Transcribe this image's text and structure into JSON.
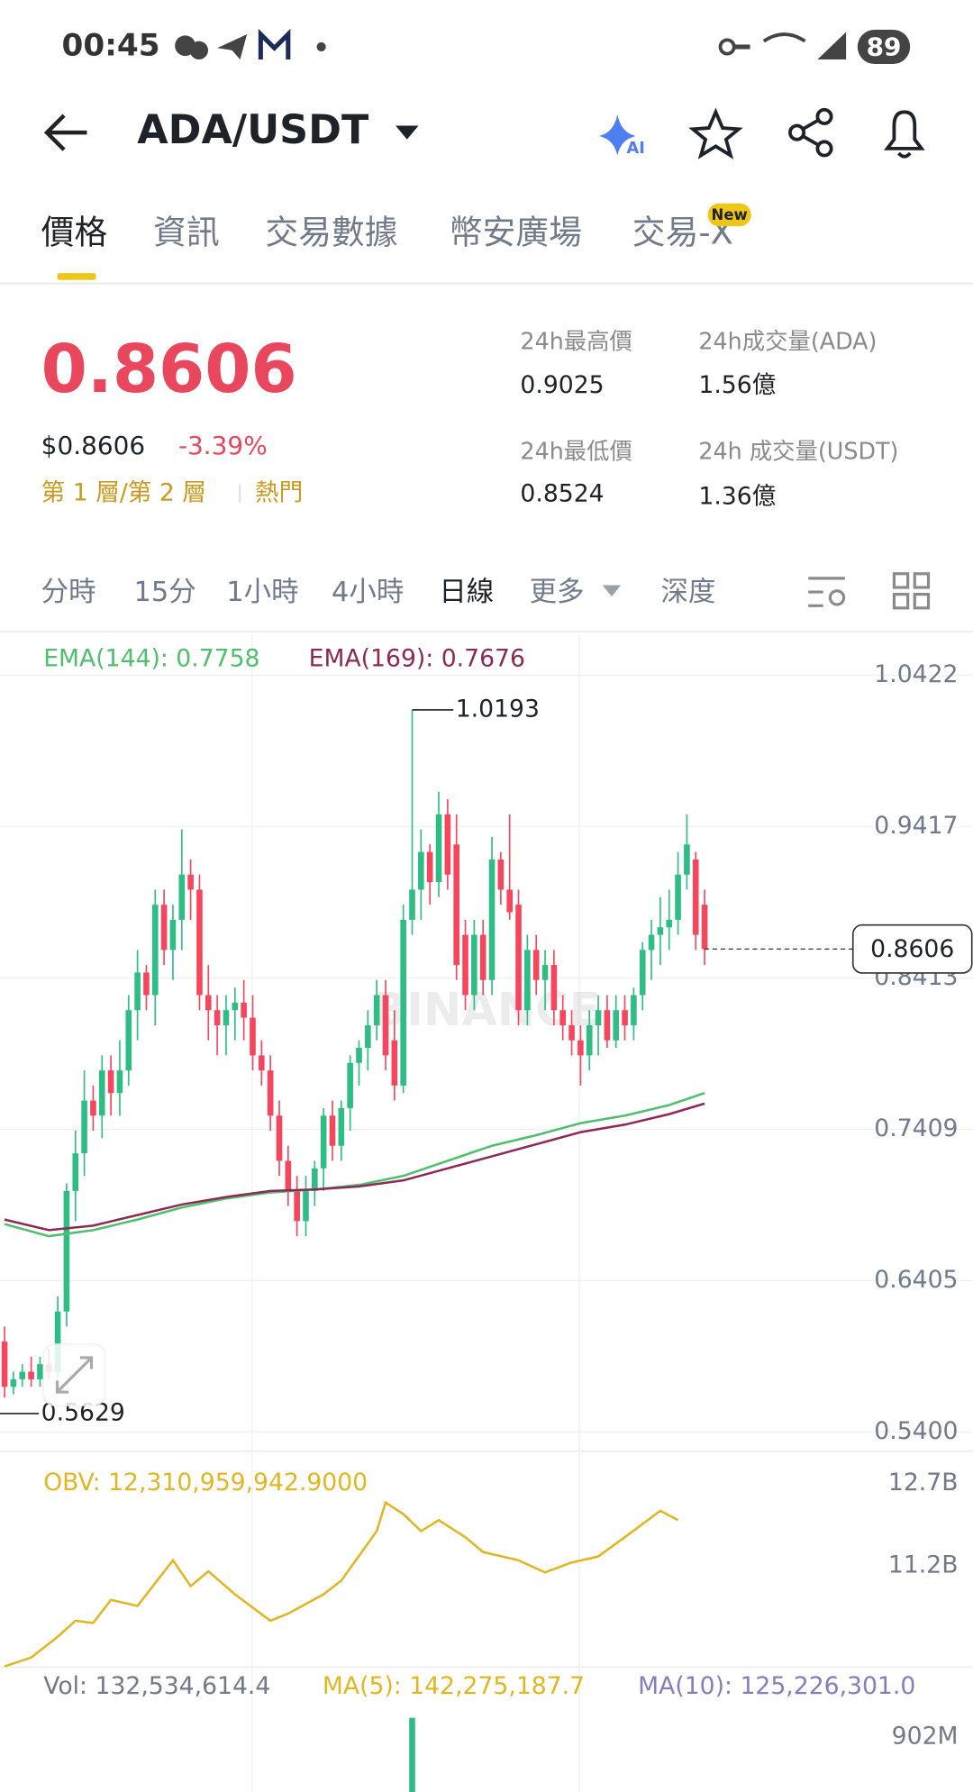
{
  "status_bar": {
    "time": "00:45",
    "battery": "89"
  },
  "header": {
    "title": "ADA/USDT"
  },
  "tabs": [
    {
      "label": "價格"
    },
    {
      "label": "資訊"
    },
    {
      "label": "交易數據"
    },
    {
      "label": "幣安廣場"
    },
    {
      "label": "交易-X",
      "badge": "New"
    }
  ],
  "price_info": {
    "last": "0.8606",
    "usd": "$0.8606",
    "change": "-3.39%",
    "tags": [
      "第 1 層/第 2 層",
      "熱門"
    ]
  },
  "stats": [
    {
      "label": "24h最高價",
      "value": "0.9025"
    },
    {
      "label": "24h成交量(ADA)",
      "value": "1.56億"
    },
    {
      "label": "24h最低價",
      "value": "0.8524"
    },
    {
      "label": "24h 成交量(USDT)",
      "value": "1.36億"
    }
  ],
  "intervals": [
    "分時",
    "15分",
    "1小時",
    "4小時",
    "日線",
    "更多",
    "深度"
  ],
  "chart_data": {
    "type": "candlestick",
    "ylim": [
      0.54,
      1.0422
    ],
    "yticks": [
      1.0422,
      0.9417,
      0.8413,
      0.7409,
      0.6405,
      {
        "value": 0.54,
        "label": "0.5400"
      }
    ],
    "up_color": "#2ebd85",
    "down_color": "#f6465d",
    "candles": [
      [
        0.6,
        0.61,
        0.5629,
        0.57
      ],
      [
        0.57,
        0.58,
        0.565,
        0.575
      ],
      [
        0.575,
        0.585,
        0.57,
        0.58
      ],
      [
        0.58,
        0.59,
        0.57,
        0.575
      ],
      [
        0.575,
        0.59,
        0.57,
        0.585
      ],
      [
        0.585,
        0.595,
        0.575,
        0.58
      ],
      [
        0.58,
        0.63,
        0.575,
        0.62
      ],
      [
        0.62,
        0.705,
        0.61,
        0.7
      ],
      [
        0.7,
        0.74,
        0.68,
        0.725
      ],
      [
        0.725,
        0.78,
        0.71,
        0.76
      ],
      [
        0.76,
        0.77,
        0.74,
        0.75
      ],
      [
        0.75,
        0.79,
        0.735,
        0.78
      ],
      [
        0.78,
        0.79,
        0.75,
        0.765
      ],
      [
        0.765,
        0.8,
        0.75,
        0.78
      ],
      [
        0.78,
        0.83,
        0.77,
        0.82
      ],
      [
        0.82,
        0.86,
        0.8,
        0.845
      ],
      [
        0.845,
        0.85,
        0.82,
        0.83
      ],
      [
        0.83,
        0.9,
        0.81,
        0.89
      ],
      [
        0.89,
        0.9,
        0.85,
        0.86
      ],
      [
        0.86,
        0.89,
        0.84,
        0.88
      ],
      [
        0.88,
        0.94,
        0.86,
        0.91
      ],
      [
        0.91,
        0.92,
        0.88,
        0.9
      ],
      [
        0.9,
        0.91,
        0.82,
        0.83
      ],
      [
        0.83,
        0.85,
        0.8,
        0.82
      ],
      [
        0.82,
        0.83,
        0.79,
        0.81
      ],
      [
        0.81,
        0.83,
        0.79,
        0.82
      ],
      [
        0.82,
        0.835,
        0.8,
        0.825
      ],
      [
        0.825,
        0.84,
        0.8,
        0.815
      ],
      [
        0.815,
        0.83,
        0.78,
        0.79
      ],
      [
        0.79,
        0.8,
        0.77,
        0.78
      ],
      [
        0.78,
        0.79,
        0.74,
        0.75
      ],
      [
        0.75,
        0.76,
        0.71,
        0.72
      ],
      [
        0.72,
        0.73,
        0.69,
        0.7
      ],
      [
        0.7,
        0.71,
        0.67,
        0.68
      ],
      [
        0.68,
        0.71,
        0.67,
        0.7
      ],
      [
        0.7,
        0.72,
        0.69,
        0.715
      ],
      [
        0.715,
        0.755,
        0.7,
        0.75
      ],
      [
        0.75,
        0.76,
        0.72,
        0.73
      ],
      [
        0.73,
        0.76,
        0.72,
        0.755
      ],
      [
        0.755,
        0.79,
        0.74,
        0.785
      ],
      [
        0.785,
        0.8,
        0.77,
        0.795
      ],
      [
        0.795,
        0.82,
        0.78,
        0.81
      ],
      [
        0.81,
        0.84,
        0.8,
        0.83
      ],
      [
        0.83,
        0.84,
        0.78,
        0.79
      ],
      [
        0.8,
        0.82,
        0.76,
        0.77
      ],
      [
        0.77,
        0.89,
        0.765,
        0.88
      ],
      [
        0.88,
        1.0193,
        0.87,
        0.9
      ],
      [
        0.9,
        0.94,
        0.88,
        0.925
      ],
      [
        0.925,
        0.93,
        0.89,
        0.905
      ],
      [
        0.905,
        0.965,
        0.895,
        0.95
      ],
      [
        0.95,
        0.96,
        0.9,
        0.91
      ],
      [
        0.93,
        0.95,
        0.84,
        0.85
      ],
      [
        0.87,
        0.88,
        0.82,
        0.83
      ],
      [
        0.83,
        0.88,
        0.82,
        0.87
      ],
      [
        0.87,
        0.88,
        0.83,
        0.84
      ],
      [
        0.84,
        0.935,
        0.83,
        0.92
      ],
      [
        0.92,
        0.925,
        0.89,
        0.9
      ],
      [
        0.9,
        0.95,
        0.88,
        0.885
      ],
      [
        0.89,
        0.9,
        0.81,
        0.82
      ],
      [
        0.82,
        0.87,
        0.81,
        0.86
      ],
      [
        0.86,
        0.87,
        0.83,
        0.84
      ],
      [
        0.84,
        0.86,
        0.82,
        0.85
      ],
      [
        0.85,
        0.86,
        0.81,
        0.82
      ],
      [
        0.82,
        0.83,
        0.8,
        0.81
      ],
      [
        0.81,
        0.82,
        0.79,
        0.8
      ],
      [
        0.8,
        0.81,
        0.77,
        0.79
      ],
      [
        0.79,
        0.82,
        0.78,
        0.81
      ],
      [
        0.81,
        0.83,
        0.79,
        0.82
      ],
      [
        0.82,
        0.83,
        0.795,
        0.8
      ],
      [
        0.8,
        0.83,
        0.795,
        0.82
      ],
      [
        0.82,
        0.83,
        0.8,
        0.81
      ],
      [
        0.81,
        0.835,
        0.8,
        0.83
      ],
      [
        0.83,
        0.865,
        0.82,
        0.86
      ],
      [
        0.86,
        0.88,
        0.84,
        0.87
      ],
      [
        0.87,
        0.895,
        0.85,
        0.875
      ],
      [
        0.875,
        0.9,
        0.86,
        0.88
      ],
      [
        0.88,
        0.925,
        0.87,
        0.91
      ],
      [
        0.91,
        0.95,
        0.9,
        0.93
      ],
      [
        0.92,
        0.925,
        0.86,
        0.87
      ],
      [
        0.89,
        0.9,
        0.85,
        0.8606
      ]
    ],
    "ema_x": [
      0,
      5,
      10,
      15,
      20,
      25,
      30,
      35,
      40,
      45,
      50,
      55,
      60,
      65,
      70,
      75,
      79
    ],
    "series": [
      {
        "name": "EMA(144): 0.7758",
        "color": "#4fbf6e",
        "values": [
          0.678,
          0.67,
          0.674,
          0.681,
          0.689,
          0.695,
          0.699,
          0.701,
          0.704,
          0.71,
          0.72,
          0.73,
          0.737,
          0.745,
          0.75,
          0.757,
          0.765
        ]
      },
      {
        "name": "EMA(169): 0.7676",
        "color": "#8b2a55",
        "values": [
          0.681,
          0.674,
          0.677,
          0.684,
          0.691,
          0.696,
          0.7,
          0.701,
          0.703,
          0.707,
          0.715,
          0.723,
          0.731,
          0.739,
          0.744,
          0.751,
          0.758
        ]
      }
    ],
    "high_label": "1.0193",
    "low_label": "0.5629",
    "last_price_label": "0.8606",
    "last_price": 0.8606,
    "watermark": "BINANCE",
    "obv": {
      "name": "OBV: 12,310,959,942.9000",
      "color": "#e0b623",
      "ylim": [
        9.33,
        13.28
      ],
      "yticks": [
        {
          "value": 12.7,
          "label": "12.7B"
        },
        {
          "value": 11.2,
          "label": "11.2B"
        }
      ],
      "x": [
        0,
        3,
        6,
        8,
        10,
        12,
        15,
        19,
        21,
        23,
        26,
        30,
        32,
        36,
        38,
        42,
        43,
        45,
        47,
        49,
        52,
        54,
        58,
        61,
        64,
        67,
        70,
        74,
        76
      ],
      "values": [
        9.37,
        9.53,
        9.91,
        10.2,
        10.16,
        10.58,
        10.47,
        11.3,
        10.83,
        11.1,
        10.68,
        10.2,
        10.33,
        10.68,
        10.93,
        11.83,
        12.35,
        12.14,
        11.83,
        12.03,
        11.72,
        11.45,
        11.3,
        11.08,
        11.26,
        11.37,
        11.72,
        12.2,
        12.03
      ]
    },
    "volume": {
      "labels": [
        "Vol: 132,534,614.4",
        "MA(5): 142,275,187.7",
        "MA(10): 125,226,301.0"
      ],
      "ylim": [
        0,
        1466000000
      ],
      "yticks": [
        {
          "value": 902000000,
          "label": "902M"
        }
      ],
      "bar_x": 46,
      "bar_value": 1220000000
    }
  }
}
